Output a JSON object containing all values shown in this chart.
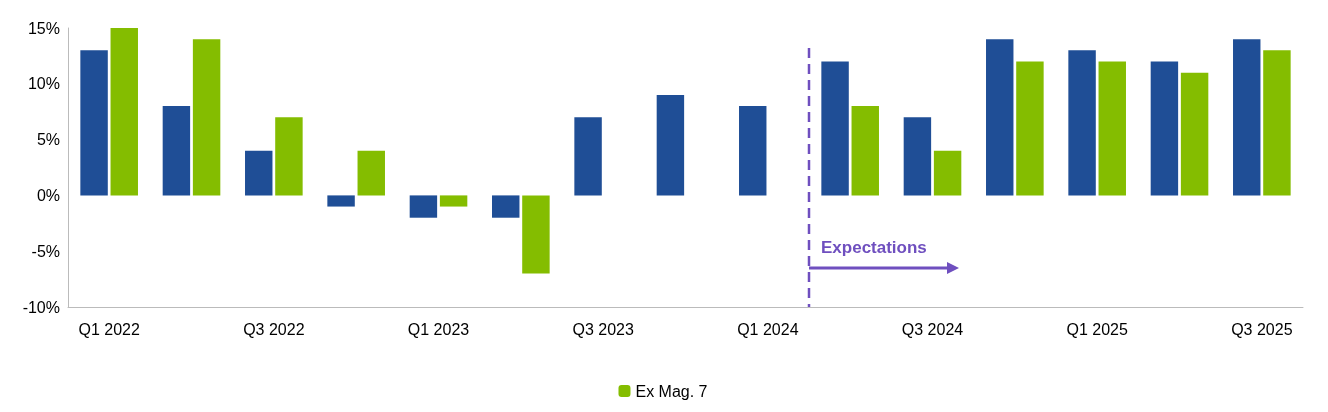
{
  "chart_data": {
    "type": "bar",
    "categories": [
      "Q1 2022",
      null,
      "Q3 2022",
      null,
      "Q1 2023",
      null,
      "Q3 2023",
      null,
      "Q1 2024",
      null,
      "Q3 2024",
      null,
      "Q1 2025",
      null,
      "Q3 2025"
    ],
    "series": [
      {
        "color": "#1f4e96",
        "values": [
          13,
          8,
          4,
          -1,
          -2,
          -2,
          7,
          9,
          8,
          12,
          7,
          14,
          13,
          12,
          14
        ]
      },
      {
        "name": "Ex Mag. 7",
        "color": "#84bd00",
        "values": [
          15,
          14,
          7,
          4,
          -1,
          -7,
          null,
          null,
          null,
          8,
          4,
          12,
          12,
          11,
          13
        ]
      }
    ],
    "ylim": [
      -10,
      15
    ],
    "yticks": [
      {
        "value": -10,
        "label": "-10%"
      },
      {
        "value": -5,
        "label": "-5%"
      },
      {
        "value": 0,
        "label": "0%"
      },
      {
        "value": 5,
        "label": "5%"
      },
      {
        "value": 10,
        "label": "10%"
      },
      {
        "value": 15,
        "label": "15%"
      }
    ],
    "ref_lines": [
      {
        "axis": "x",
        "value": "Q1 2024",
        "label": "Expectations",
        "color": "#6f4fbf",
        "line_style": "dashed"
      }
    ],
    "grid": false,
    "legend": "bottom"
  }
}
